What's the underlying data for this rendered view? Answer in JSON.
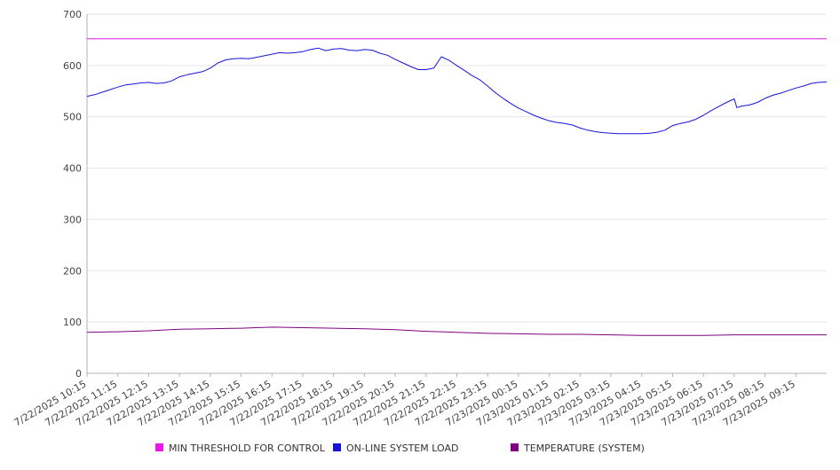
{
  "chart_data": {
    "type": "line",
    "title": "",
    "xlabel": "",
    "ylabel": "",
    "ylim": [
      0,
      700
    ],
    "yticks": [
      0,
      100,
      200,
      300,
      400,
      500,
      600,
      700
    ],
    "grid": true,
    "legend_position": "bottom",
    "x_tick_labels": [
      "7/22/2025 10:15",
      "7/22/2025 11:15",
      "7/22/2025 12:15",
      "7/22/2025 13:15",
      "7/22/2025 14:15",
      "7/22/2025 15:15",
      "7/22/2025 16:15",
      "7/22/2025 17:15",
      "7/22/2025 18:15",
      "7/22/2025 19:15",
      "7/22/2025 20:15",
      "7/22/2025 21:15",
      "7/22/2025 22:15",
      "7/22/2025 23:15",
      "7/23/2025 00:15",
      "7/23/2025 01:15",
      "7/23/2025 02:15",
      "7/23/2025 03:15",
      "7/23/2025 04:15",
      "7/23/2025 05:15",
      "7/23/2025 06:15",
      "7/23/2025 07:15",
      "7/23/2025 08:15",
      "7/23/2025 09:15"
    ],
    "x_range": [
      "7/22/2025 10:15",
      "7/23/2025 10:15"
    ],
    "series": [
      {
        "name": "MIN THRESHOLD FOR CONTROL",
        "color": "#e619e6",
        "points": [
          [
            "7/22/2025 10:15",
            652
          ],
          [
            "7/23/2025 10:15",
            652
          ]
        ]
      },
      {
        "name": "ON-LINE SYSTEM LOAD",
        "color": "#1414dc",
        "points": [
          [
            "7/22/2025 10:15",
            540
          ],
          [
            "7/22/2025 10:30",
            543
          ],
          [
            "7/22/2025 10:45",
            548
          ],
          [
            "7/22/2025 11:00",
            553
          ],
          [
            "7/22/2025 11:15",
            558
          ],
          [
            "7/22/2025 11:30",
            562
          ],
          [
            "7/22/2025 11:45",
            564
          ],
          [
            "7/22/2025 12:00",
            566
          ],
          [
            "7/22/2025 12:15",
            567
          ],
          [
            "7/22/2025 12:30",
            565
          ],
          [
            "7/22/2025 12:45",
            566
          ],
          [
            "7/22/2025 13:00",
            570
          ],
          [
            "7/22/2025 13:15",
            578
          ],
          [
            "7/22/2025 13:30",
            582
          ],
          [
            "7/22/2025 13:45",
            585
          ],
          [
            "7/22/2025 14:00",
            588
          ],
          [
            "7/22/2025 14:15",
            595
          ],
          [
            "7/22/2025 14:30",
            605
          ],
          [
            "7/22/2025 14:45",
            611
          ],
          [
            "7/22/2025 15:00",
            613
          ],
          [
            "7/22/2025 15:15",
            614
          ],
          [
            "7/22/2025 15:30",
            613
          ],
          [
            "7/22/2025 15:45",
            616
          ],
          [
            "7/22/2025 16:00",
            619
          ],
          [
            "7/22/2025 16:15",
            622
          ],
          [
            "7/22/2025 16:30",
            625
          ],
          [
            "7/22/2025 16:45",
            624
          ],
          [
            "7/22/2025 17:00",
            625
          ],
          [
            "7/22/2025 17:15",
            627
          ],
          [
            "7/22/2025 17:30",
            631
          ],
          [
            "7/22/2025 17:45",
            634
          ],
          [
            "7/22/2025 18:00",
            629
          ],
          [
            "7/22/2025 18:15",
            632
          ],
          [
            "7/22/2025 18:30",
            633
          ],
          [
            "7/22/2025 18:45",
            630
          ],
          [
            "7/22/2025 19:00",
            629
          ],
          [
            "7/22/2025 19:15",
            631
          ],
          [
            "7/22/2025 19:30",
            630
          ],
          [
            "7/22/2025 19:45",
            624
          ],
          [
            "7/22/2025 20:00",
            620
          ],
          [
            "7/22/2025 20:15",
            612
          ],
          [
            "7/22/2025 20:30",
            605
          ],
          [
            "7/22/2025 20:45",
            598
          ],
          [
            "7/22/2025 21:00",
            592
          ],
          [
            "7/22/2025 21:15",
            592
          ],
          [
            "7/22/2025 21:30",
            595
          ],
          [
            "7/22/2025 21:45",
            617
          ],
          [
            "7/22/2025 22:00",
            610
          ],
          [
            "7/22/2025 22:15",
            600
          ],
          [
            "7/22/2025 22:30",
            590
          ],
          [
            "7/22/2025 22:45",
            580
          ],
          [
            "7/22/2025 23:00",
            572
          ],
          [
            "7/22/2025 23:15",
            560
          ],
          [
            "7/22/2025 23:30",
            547
          ],
          [
            "7/22/2025 23:45",
            536
          ],
          [
            "7/23/2025 00:00",
            526
          ],
          [
            "7/23/2025 00:15",
            517
          ],
          [
            "7/23/2025 00:30",
            510
          ],
          [
            "7/23/2025 00:45",
            503
          ],
          [
            "7/23/2025 01:00",
            497
          ],
          [
            "7/23/2025 01:15",
            492
          ],
          [
            "7/23/2025 01:30",
            489
          ],
          [
            "7/23/2025 01:45",
            487
          ],
          [
            "7/23/2025 02:00",
            484
          ],
          [
            "7/23/2025 02:15",
            478
          ],
          [
            "7/23/2025 02:30",
            474
          ],
          [
            "7/23/2025 02:45",
            471
          ],
          [
            "7/23/2025 03:00",
            469
          ],
          [
            "7/23/2025 03:15",
            468
          ],
          [
            "7/23/2025 03:30",
            467
          ],
          [
            "7/23/2025 03:45",
            467
          ],
          [
            "7/23/2025 04:00",
            467
          ],
          [
            "7/23/2025 04:15",
            467
          ],
          [
            "7/23/2025 04:30",
            468
          ],
          [
            "7/23/2025 04:45",
            470
          ],
          [
            "7/23/2025 05:00",
            474
          ],
          [
            "7/23/2025 05:15",
            483
          ],
          [
            "7/23/2025 05:30",
            487
          ],
          [
            "7/23/2025 05:45",
            490
          ],
          [
            "7/23/2025 06:00",
            495
          ],
          [
            "7/23/2025 06:15",
            503
          ],
          [
            "7/23/2025 06:30",
            512
          ],
          [
            "7/23/2025 06:45",
            520
          ],
          [
            "7/23/2025 07:00",
            528
          ],
          [
            "7/23/2025 07:15",
            535
          ],
          [
            "7/23/2025 07:20",
            518
          ],
          [
            "7/23/2025 07:30",
            521
          ],
          [
            "7/23/2025 07:45",
            523
          ],
          [
            "7/23/2025 08:00",
            528
          ],
          [
            "7/23/2025 08:15",
            536
          ],
          [
            "7/23/2025 08:30",
            542
          ],
          [
            "7/23/2025 08:45",
            546
          ],
          [
            "7/23/2025 09:00",
            551
          ],
          [
            "7/23/2025 09:15",
            556
          ],
          [
            "7/23/2025 09:30",
            560
          ],
          [
            "7/23/2025 09:45",
            565
          ],
          [
            "7/23/2025 10:00",
            567
          ],
          [
            "7/23/2025 10:15",
            568
          ]
        ]
      },
      {
        "name": "TEMPERATURE (SYSTEM)",
        "color": "#800080",
        "points": [
          [
            "7/22/2025 10:15",
            80
          ],
          [
            "7/22/2025 11:15",
            81
          ],
          [
            "7/22/2025 12:15",
            83
          ],
          [
            "7/22/2025 13:15",
            86
          ],
          [
            "7/22/2025 14:15",
            87
          ],
          [
            "7/22/2025 15:15",
            88
          ],
          [
            "7/22/2025 16:15",
            90
          ],
          [
            "7/22/2025 17:15",
            89
          ],
          [
            "7/22/2025 18:15",
            88
          ],
          [
            "7/22/2025 19:15",
            87
          ],
          [
            "7/22/2025 20:15",
            85
          ],
          [
            "7/22/2025 21:15",
            82
          ],
          [
            "7/22/2025 22:15",
            80
          ],
          [
            "7/22/2025 23:15",
            78
          ],
          [
            "7/23/2025 00:15",
            77
          ],
          [
            "7/23/2025 01:15",
            76
          ],
          [
            "7/23/2025 02:15",
            76
          ],
          [
            "7/23/2025 03:15",
            75
          ],
          [
            "7/23/2025 04:15",
            74
          ],
          [
            "7/23/2025 05:15",
            74
          ],
          [
            "7/23/2025 06:15",
            74
          ],
          [
            "7/23/2025 07:15",
            75
          ],
          [
            "7/23/2025 08:15",
            75
          ],
          [
            "7/23/2025 09:15",
            75
          ],
          [
            "7/23/2025 10:15",
            75
          ]
        ]
      }
    ]
  }
}
